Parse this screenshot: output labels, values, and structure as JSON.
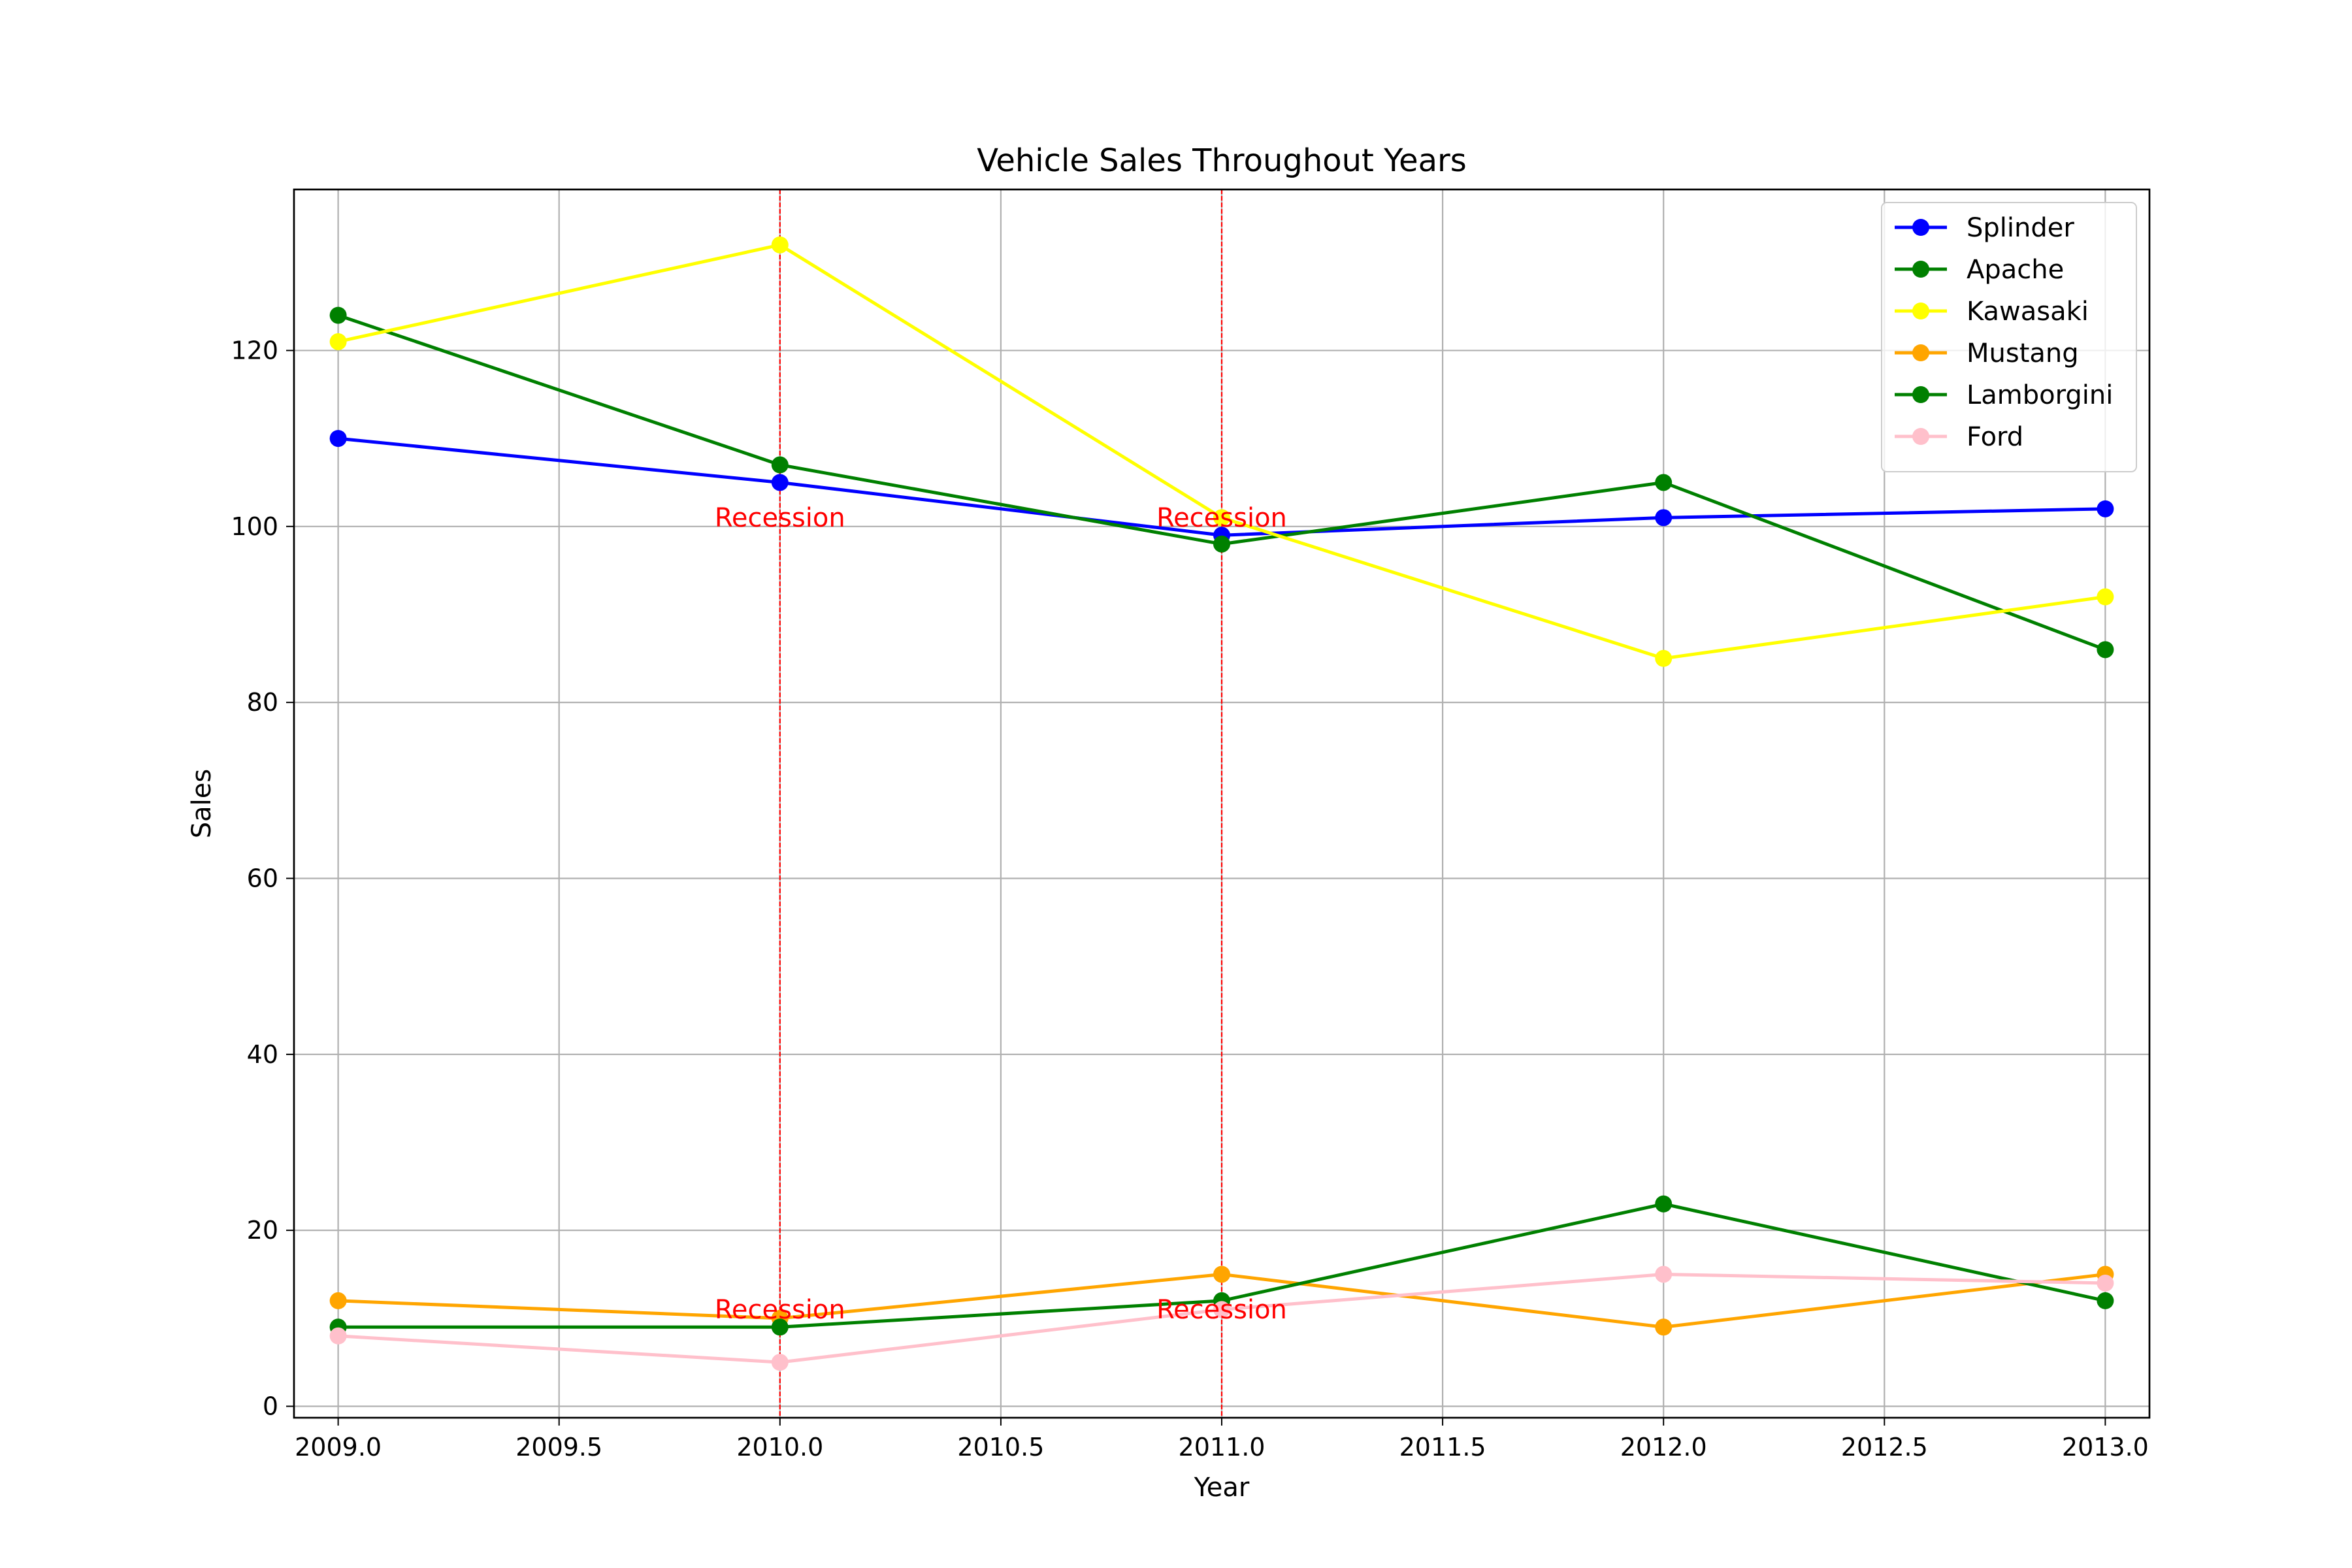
{
  "chart_data": {
    "type": "line",
    "title": "Vehicle Sales Throughout Years",
    "xlabel": "Year",
    "ylabel": "Sales",
    "xlim": [
      2008.9,
      2013.1
    ],
    "ylim": [
      -1.3,
      138.3
    ],
    "xticks": [
      2009.0,
      2009.5,
      2010.0,
      2010.5,
      2011.0,
      2011.5,
      2012.0,
      2012.5,
      2013.0
    ],
    "xtick_labels": [
      "2009.0",
      "2009.5",
      "2010.0",
      "2010.5",
      "2011.0",
      "2011.5",
      "2012.0",
      "2012.5",
      "2013.0"
    ],
    "yticks": [
      0,
      20,
      40,
      60,
      80,
      100,
      120
    ],
    "ytick_labels": [
      "0",
      "20",
      "40",
      "60",
      "80",
      "100",
      "120"
    ],
    "grid": true,
    "legend_position": "top-right",
    "x": [
      2009,
      2010,
      2011,
      2012,
      2013
    ],
    "series": [
      {
        "name": "Splinder",
        "color": "#0000ff",
        "values": [
          110,
          105,
          99,
          101,
          102
        ]
      },
      {
        "name": "Apache",
        "color": "#008000",
        "values": [
          124,
          107,
          98,
          105,
          86
        ]
      },
      {
        "name": "Kawasaki",
        "color": "#ffff00",
        "values": [
          121,
          132,
          101,
          85,
          92
        ]
      },
      {
        "name": "Mustang",
        "color": "#ffa500",
        "values": [
          12,
          10,
          15,
          9,
          15
        ]
      },
      {
        "name": "Lamborgini",
        "color": "#008000",
        "values": [
          9,
          9,
          12,
          23,
          12
        ]
      },
      {
        "name": "Ford",
        "color": "#ffc0cb",
        "values": [
          8,
          5,
          11,
          15,
          14
        ]
      }
    ],
    "reference_lines": [
      {
        "x": 2010,
        "color": "#ff0000"
      },
      {
        "x": 2011,
        "color": "#ff0000"
      }
    ],
    "annotations": [
      {
        "text": "Recession",
        "x": 2010,
        "y": 100,
        "color": "#ff0000"
      },
      {
        "text": "Recession",
        "x": 2011,
        "y": 100,
        "color": "#ff0000"
      },
      {
        "text": "Recession",
        "x": 2010,
        "y": 10,
        "color": "#ff0000"
      },
      {
        "text": "Recession",
        "x": 2011,
        "y": 10,
        "color": "#ff0000"
      }
    ]
  }
}
